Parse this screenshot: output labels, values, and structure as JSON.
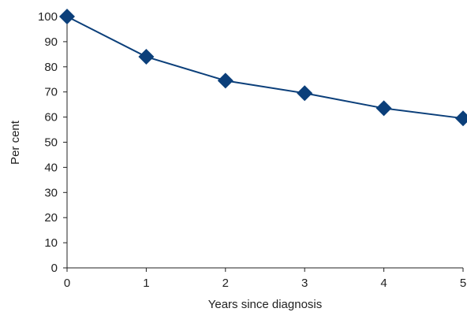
{
  "chart_data": {
    "type": "line",
    "title": "",
    "xlabel": "Years since diagnosis",
    "ylabel": "Per cent",
    "x": [
      0,
      1,
      2,
      3,
      4,
      5
    ],
    "xticks": [
      0,
      1,
      2,
      3,
      4,
      5
    ],
    "yticks": [
      0,
      10,
      20,
      30,
      40,
      50,
      60,
      70,
      80,
      90,
      100
    ],
    "xlim": [
      0,
      5
    ],
    "ylim": [
      0,
      100
    ],
    "grid": false,
    "legend": "none",
    "series": [
      {
        "values": [
          100,
          84,
          74.5,
          69.5,
          63.5,
          59.5
        ],
        "color": "#0b3f7a",
        "marker": "diamond"
      }
    ]
  }
}
